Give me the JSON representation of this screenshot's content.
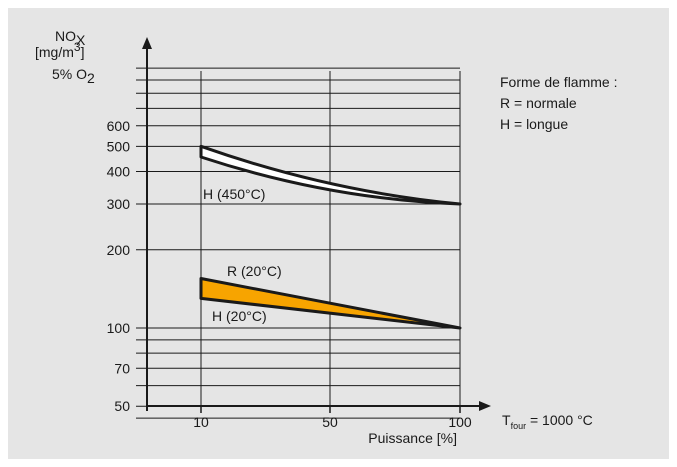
{
  "chart_data": {
    "type": "area",
    "ylabel_lines": [
      "NOX",
      "[mg/m3]",
      "5% O2"
    ],
    "ylabel_parts": {
      "nox_base": "NO",
      "nox_sub": "X",
      "unit_base": "[mg/m",
      "unit_sup": "3",
      "unit_close": "]",
      "o2_base": "5% O",
      "o2_sub": "2"
    },
    "xlabel": "Puissance [%]",
    "x_ticks": [
      "10",
      "50",
      "100"
    ],
    "y_ticks": [
      "50",
      "70",
      "100",
      "200",
      "300",
      "400",
      "500",
      "600"
    ],
    "y_scale": "log",
    "grid": true,
    "legend": {
      "title": "Forme de flamme :",
      "entries": [
        "R = normale",
        "H = longue"
      ]
    },
    "condition": {
      "base": "T",
      "sub": "four",
      "rest": " = 1000 °C"
    },
    "series": [
      {
        "name": "H (450°C)",
        "fill": "#ffffff",
        "upper": {
          "x": [
            "10",
            "50",
            "100"
          ],
          "y": [
            500,
            360,
            300
          ]
        },
        "lower": {
          "x": [
            "10",
            "50",
            "100"
          ],
          "y": [
            455,
            340,
            300
          ]
        }
      },
      {
        "name": "R (20°C)",
        "fill": "#f7a400",
        "upper": {
          "x": [
            "10",
            "100"
          ],
          "y": [
            155,
            100
          ]
        },
        "lower": {
          "x": [
            "10",
            "100"
          ],
          "y": [
            130,
            100
          ]
        }
      }
    ],
    "series_labels": [
      "H (450°C)",
      "R (20°C)",
      "H (20°C)"
    ]
  }
}
